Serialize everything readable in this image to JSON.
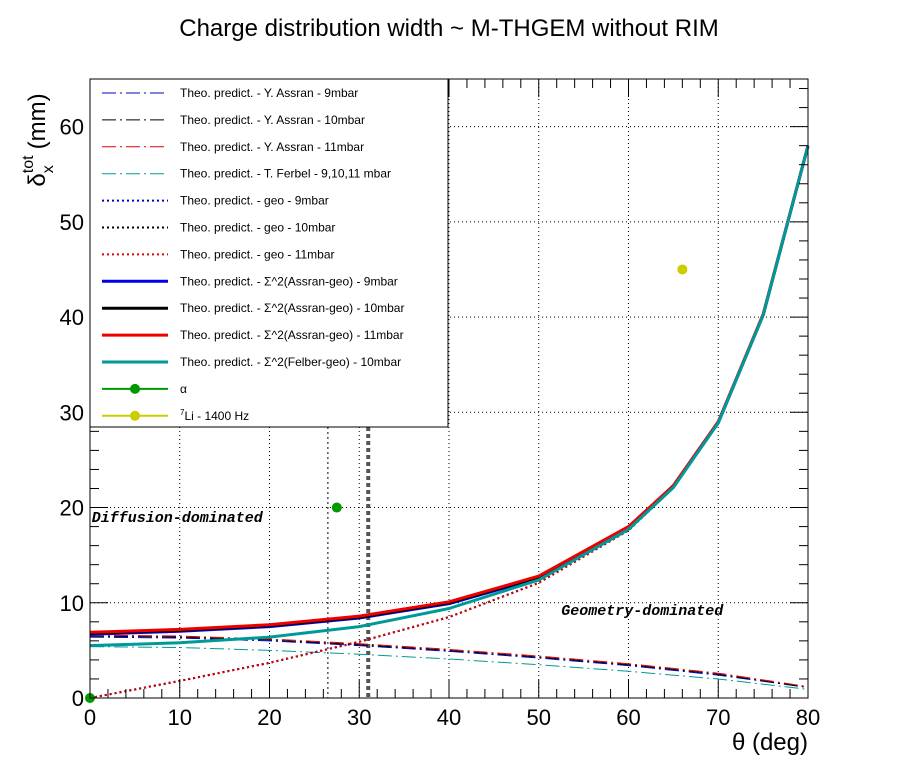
{
  "chart_data": {
    "type": "line",
    "title": "Charge distribution width ~ M-THGEM without RIM",
    "xlabel": "θ (deg)",
    "ylabel_main": "δ",
    "ylabel_sup": "tot",
    "ylabel_sub": "x",
    "ylabel_unit": "(mm)",
    "xlim": [
      0,
      80
    ],
    "ylim": [
      0,
      65
    ],
    "xticks": [
      0,
      10,
      20,
      30,
      40,
      50,
      60,
      70,
      80
    ],
    "yticks": [
      0,
      10,
      20,
      30,
      40,
      50,
      60
    ],
    "grid": true,
    "legend_position": "top-left",
    "vlines": [
      {
        "x": 26.5,
        "style": "dotted",
        "color": "#555555"
      },
      {
        "x": 31.0,
        "style": "dashed-thick",
        "color": "#555555"
      }
    ],
    "annotations": [
      {
        "text": "Diffusion-dominated",
        "x": 0.2,
        "y": 18.5
      },
      {
        "text": "Geometry-dominated",
        "x": 52.5,
        "y": 8.7
      }
    ],
    "series": [
      {
        "name": "Theo. predict. - Y. Assran - 9mbar",
        "color": "#0000cc",
        "style": "dashdot",
        "width": 1,
        "x": [
          0,
          10,
          20,
          30,
          40,
          50,
          60,
          70,
          80
        ],
        "y": [
          6.4,
          6.3,
          6.0,
          5.5,
          4.9,
          4.2,
          3.4,
          2.4,
          1.1
        ]
      },
      {
        "name": "Theo. predict. - Y. Assran - 10mbar",
        "color": "#000000",
        "style": "dashdot",
        "width": 1,
        "x": [
          0,
          10,
          20,
          30,
          40,
          50,
          60,
          70,
          80
        ],
        "y": [
          6.5,
          6.4,
          6.1,
          5.6,
          5.0,
          4.3,
          3.5,
          2.5,
          1.1
        ]
      },
      {
        "name": "Theo. predict. - Y. Assran - 11mbar",
        "color": "#dd0000",
        "style": "dashdot",
        "width": 1,
        "x": [
          0,
          10,
          20,
          30,
          40,
          50,
          60,
          70,
          80
        ],
        "y": [
          6.6,
          6.5,
          6.2,
          5.7,
          5.1,
          4.4,
          3.6,
          2.6,
          1.2
        ]
      },
      {
        "name": "Theo. predict. - T. Ferbel - 9,10,11 mbar",
        "color": "#009999",
        "style": "dashdot",
        "width": 1,
        "x": [
          0,
          10,
          20,
          30,
          40,
          50,
          60,
          70,
          80
        ],
        "y": [
          5.4,
          5.3,
          5.0,
          4.6,
          4.1,
          3.5,
          2.8,
          2.0,
          0.9
        ]
      },
      {
        "name": "Theo. predict. - geo - 9mbar",
        "color": "#0000cc",
        "style": "dotted",
        "width": 2,
        "x": [
          0,
          10,
          20,
          30,
          40,
          50,
          60,
          65,
          70,
          75,
          80
        ],
        "y": [
          0,
          1.8,
          3.7,
          5.9,
          8.5,
          12.1,
          17.6,
          22.1,
          28.9,
          40.2,
          58.0
        ]
      },
      {
        "name": "Theo. predict. - geo - 10mbar",
        "color": "#000000",
        "style": "dotted",
        "width": 2,
        "x": [
          0,
          10,
          20,
          30,
          40,
          50,
          60,
          65,
          70,
          75,
          80
        ],
        "y": [
          0,
          1.8,
          3.7,
          5.9,
          8.5,
          12.1,
          17.6,
          22.1,
          28.9,
          40.2,
          58.0
        ]
      },
      {
        "name": "Theo. predict. - geo - 11mbar",
        "color": "#dd0000",
        "style": "dotted",
        "width": 2,
        "x": [
          0,
          10,
          20,
          30,
          40,
          50,
          60,
          65,
          70,
          75,
          80
        ],
        "y": [
          0,
          1.8,
          3.7,
          5.9,
          8.5,
          12.1,
          17.6,
          22.1,
          28.9,
          40.2,
          58.0
        ]
      },
      {
        "name": "Theo. predict. -   Σ^2(Assran-geo) - 9mbar",
        "color": "#0000ee",
        "style": "solid",
        "width": 3,
        "x": [
          0,
          10,
          20,
          30,
          40,
          50,
          60,
          65,
          70,
          75,
          80
        ],
        "y": [
          6.7,
          7.0,
          7.5,
          8.4,
          9.9,
          12.6,
          17.8,
          22.2,
          28.9,
          40.2,
          58.0
        ]
      },
      {
        "name": "Theo. predict. -   Σ^2(Assran-geo) - 10mbar",
        "color": "#000000",
        "style": "solid",
        "width": 3,
        "x": [
          0,
          10,
          20,
          30,
          40,
          50,
          60,
          65,
          70,
          75,
          80
        ],
        "y": [
          6.8,
          7.1,
          7.6,
          8.5,
          10.0,
          12.7,
          17.9,
          22.3,
          29.0,
          40.2,
          58.0
        ]
      },
      {
        "name": "Theo. predict. -   Σ^2(Assran-geo) - 11mbar",
        "color": "#ee0000",
        "style": "solid",
        "width": 3,
        "x": [
          0,
          10,
          20,
          30,
          40,
          50,
          60,
          65,
          70,
          75,
          80
        ],
        "y": [
          6.9,
          7.2,
          7.7,
          8.6,
          10.1,
          12.8,
          18.0,
          22.3,
          29.0,
          40.3,
          58.0
        ]
      },
      {
        "name": "Theo. predict. -   Σ^2(Felber-geo) - 10mbar",
        "color": "#009999",
        "style": "solid",
        "width": 3,
        "x": [
          0,
          10,
          20,
          30,
          40,
          50,
          60,
          65,
          70,
          75,
          80
        ],
        "y": [
          5.5,
          5.8,
          6.4,
          7.5,
          9.4,
          12.4,
          17.7,
          22.1,
          28.9,
          40.2,
          58.0
        ]
      }
    ],
    "points": [
      {
        "name": "α",
        "color": "#009900",
        "x": [
          0,
          27.5
        ],
        "y": [
          0,
          20.0
        ]
      },
      {
        "name_sup": "7",
        "name": "Li - 1400 Hz",
        "color": "#cccc00",
        "x": [
          66.0
        ],
        "y": [
          45.0
        ]
      }
    ]
  }
}
